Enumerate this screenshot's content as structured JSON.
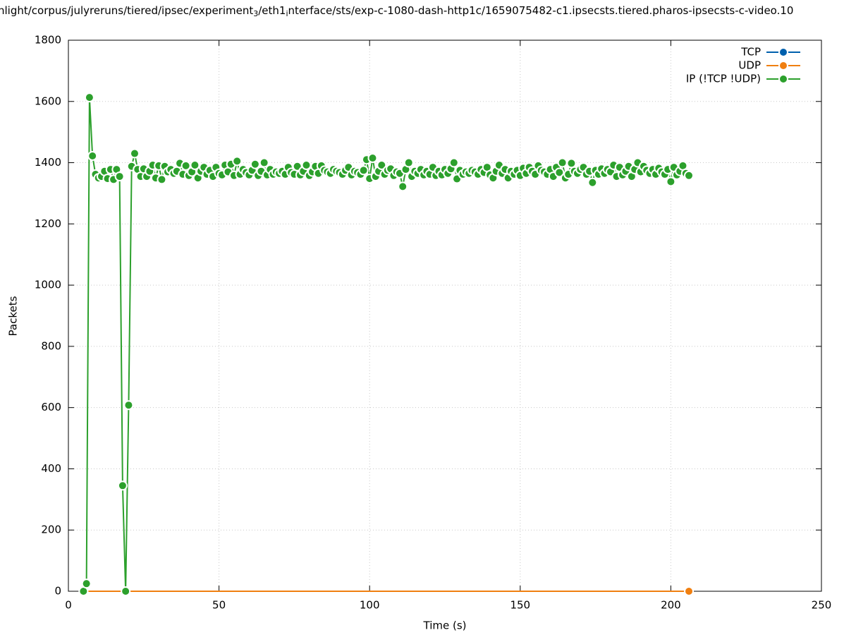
{
  "chart_data": {
    "type": "line",
    "title": [
      "nlight/corpus/julyreruns/tiered/ipsec/experiment",
      "3",
      "/eth1",
      "i",
      "nterface/sts/exp-c-1080-dash-http1c/1659075482-c1.ipsecsts.tiered.pharos-ipsecsts-c-video.10"
    ],
    "x_label": "Time (s)",
    "y_label": "Packets",
    "xlim": [
      0,
      250
    ],
    "xticks": [
      0,
      50,
      100,
      150,
      200,
      250
    ],
    "ylim": [
      0,
      1800
    ],
    "yticks": [
      0,
      200,
      400,
      600,
      800,
      1000,
      1200,
      1400,
      1600,
      1800
    ],
    "grid": true,
    "legend": "top-right",
    "series": [
      {
        "name": "TCP",
        "color": "#0060ad",
        "x": [],
        "values": []
      },
      {
        "name": "UDP",
        "color": "#f07f10",
        "x": [
          5,
          206
        ],
        "values": [
          0,
          0
        ]
      },
      {
        "name": "IP (!TCP  !UDP)",
        "color": "#2ca02c",
        "x": [
          5,
          6,
          7,
          8,
          9,
          10,
          11,
          12,
          13,
          14,
          15,
          16,
          17,
          18,
          19,
          20,
          21,
          22,
          23,
          24,
          25,
          26,
          27,
          28,
          29,
          30,
          31,
          32,
          33,
          34,
          35,
          36,
          37,
          38,
          39,
          40,
          41,
          42,
          43,
          44,
          45,
          46,
          47,
          48,
          49,
          50,
          51,
          52,
          53,
          54,
          55,
          56,
          57,
          58,
          59,
          60,
          61,
          62,
          63,
          64,
          65,
          66,
          67,
          68,
          69,
          70,
          71,
          72,
          73,
          74,
          75,
          76,
          77,
          78,
          79,
          80,
          81,
          82,
          83,
          84,
          85,
          86,
          87,
          88,
          89,
          90,
          91,
          92,
          93,
          94,
          95,
          96,
          97,
          98,
          99,
          100,
          101,
          102,
          103,
          104,
          105,
          106,
          107,
          108,
          109,
          110,
          111,
          112,
          113,
          114,
          115,
          116,
          117,
          118,
          119,
          120,
          121,
          122,
          123,
          124,
          125,
          126,
          127,
          128,
          129,
          130,
          131,
          132,
          133,
          134,
          135,
          136,
          137,
          138,
          139,
          140,
          141,
          142,
          143,
          144,
          145,
          146,
          147,
          148,
          149,
          150,
          151,
          152,
          153,
          154,
          155,
          156,
          157,
          158,
          159,
          160,
          161,
          162,
          163,
          164,
          165,
          166,
          167,
          168,
          169,
          170,
          171,
          172,
          173,
          174,
          175,
          176,
          177,
          178,
          179,
          180,
          181,
          182,
          183,
          184,
          185,
          186,
          187,
          188,
          189,
          190,
          191,
          192,
          193,
          194,
          195,
          196,
          197,
          198,
          199,
          200,
          201,
          202,
          203,
          204,
          205,
          206
        ],
        "values": [
          0,
          25,
          1613,
          1422,
          1362,
          1350,
          1355,
          1372,
          1348,
          1378,
          1345,
          1378,
          1355,
          345,
          0,
          608,
          1388,
          1430,
          1378,
          1355,
          1380,
          1355,
          1372,
          1392,
          1350,
          1390,
          1345,
          1388,
          1370,
          1378,
          1365,
          1372,
          1398,
          1362,
          1390,
          1358,
          1370,
          1392,
          1350,
          1372,
          1385,
          1362,
          1375,
          1355,
          1385,
          1365,
          1360,
          1392,
          1370,
          1395,
          1358,
          1405,
          1362,
          1378,
          1368,
          1360,
          1375,
          1395,
          1358,
          1372,
          1400,
          1360,
          1378,
          1362,
          1370,
          1365,
          1372,
          1362,
          1385,
          1368,
          1362,
          1388,
          1360,
          1372,
          1392,
          1358,
          1370,
          1388,
          1365,
          1390,
          1375,
          1370,
          1365,
          1378,
          1372,
          1368,
          1362,
          1375,
          1385,
          1360,
          1372,
          1368,
          1362,
          1375,
          1410,
          1348,
          1415,
          1355,
          1372,
          1392,
          1362,
          1375,
          1380,
          1358,
          1370,
          1365,
          1322,
          1378,
          1400,
          1355,
          1372,
          1365,
          1378,
          1360,
          1372,
          1362,
          1385,
          1358,
          1372,
          1360,
          1378,
          1365,
          1380,
          1400,
          1347,
          1375,
          1362,
          1370,
          1365,
          1375,
          1370,
          1362,
          1378,
          1368,
          1385,
          1360,
          1350,
          1372,
          1392,
          1365,
          1378,
          1350,
          1372,
          1362,
          1375,
          1358,
          1382,
          1365,
          1385,
          1372,
          1362,
          1390,
          1375,
          1370,
          1362,
          1378,
          1355,
          1385,
          1368,
          1400,
          1350,
          1362,
          1398,
          1372,
          1365,
          1378,
          1385,
          1362,
          1372,
          1335,
          1375,
          1362,
          1380,
          1365,
          1378,
          1370,
          1392,
          1355,
          1385,
          1360,
          1372,
          1388,
          1355,
          1378,
          1400,
          1370,
          1388,
          1375,
          1365,
          1378,
          1362,
          1382,
          1370,
          1362,
          1378,
          1338,
          1385,
          1360,
          1372,
          1390,
          1365,
          1358
        ]
      }
    ]
  }
}
